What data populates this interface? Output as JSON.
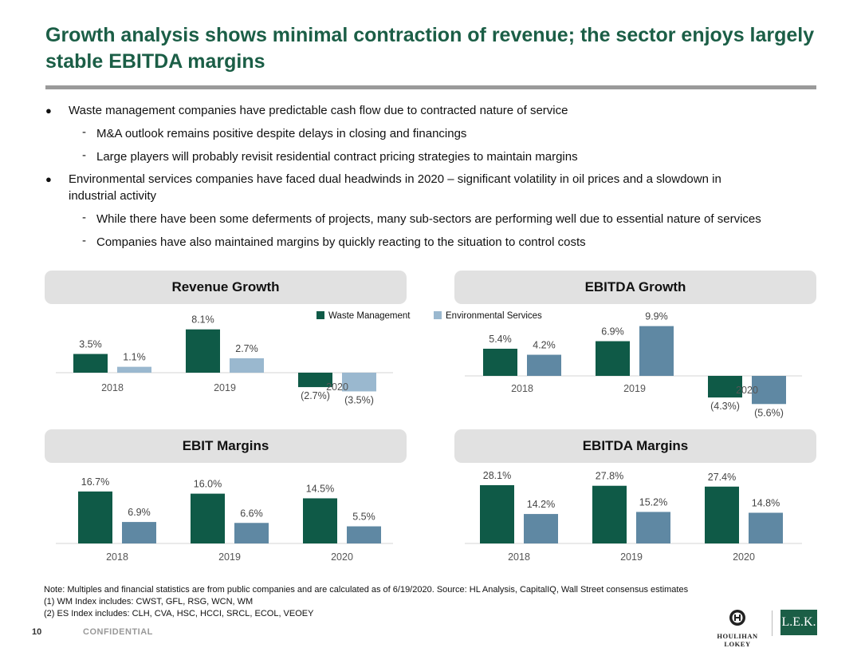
{
  "title": "Growth analysis shows minimal contraction of revenue; the sector enjoys largely stable EBITDA margins",
  "bullets": {
    "b1": "Waste management companies have predictable cash flow due to contracted nature of service",
    "b1_sub1": "M&A outlook remains positive despite delays in closing and financings",
    "b1_sub2": "Large players will probably revisit residential contract pricing strategies to maintain margins",
    "b2_line1": "Environmental services companies have faced dual headwinds in 2020 – significant volatility in oil prices and a slowdown in",
    "b2_line2": "industrial activity",
    "b2_sub1": "While there have been some deferments of projects, many sub-sectors are performing well due to essential nature of services",
    "b2_sub2": "Companies have also maintained margins by quickly reacting to the situation to control costs",
    "dash": "-"
  },
  "legend": {
    "wm": "Waste Management",
    "es": "Environmental Services"
  },
  "colors": {
    "wm": "#0f5a47",
    "es": "#5f88a3",
    "es_light": "#9ab8cf",
    "panel": "#e1e1e1",
    "title": "#1b5e46"
  },
  "chart_data": [
    {
      "type": "bar",
      "title": "Revenue Growth",
      "categories": [
        "2018",
        "2019",
        "2020"
      ],
      "series": [
        {
          "name": "Waste Management",
          "values": [
            3.5,
            8.1,
            -2.7
          ],
          "labels": [
            "3.5%",
            "8.1%",
            "(2.7%)"
          ]
        },
        {
          "name": "Environmental Services",
          "values": [
            1.1,
            2.7,
            -3.5
          ],
          "labels": [
            "1.1%",
            "2.7%",
            "(3.5%)"
          ]
        }
      ]
    },
    {
      "type": "bar",
      "title": "EBITDA Growth",
      "categories": [
        "2018",
        "2019",
        "2020"
      ],
      "series": [
        {
          "name": "Waste Management",
          "values": [
            5.4,
            6.9,
            -4.3
          ],
          "labels": [
            "5.4%",
            "6.9%",
            "(4.3%)"
          ]
        },
        {
          "name": "Environmental Services",
          "values": [
            4.2,
            9.9,
            -5.6
          ],
          "labels": [
            "4.2%",
            "9.9%",
            "(5.6%)"
          ]
        }
      ]
    },
    {
      "type": "bar",
      "title": "EBIT Margins",
      "categories": [
        "2018",
        "2019",
        "2020"
      ],
      "series": [
        {
          "name": "Waste Management",
          "values": [
            16.7,
            16.0,
            14.5
          ],
          "labels": [
            "16.7%",
            "16.0%",
            "14.5%"
          ]
        },
        {
          "name": "Environmental Services",
          "values": [
            6.9,
            6.6,
            5.5
          ],
          "labels": [
            "6.9%",
            "6.6%",
            "5.5%"
          ]
        }
      ]
    },
    {
      "type": "bar",
      "title": "EBITDA Margins",
      "categories": [
        "2018",
        "2019",
        "2020"
      ],
      "series": [
        {
          "name": "Waste Management",
          "values": [
            28.1,
            27.8,
            27.4
          ],
          "labels": [
            "28.1%",
            "27.8%",
            "27.4%"
          ]
        },
        {
          "name": "Environmental Services",
          "values": [
            14.2,
            15.2,
            14.8
          ],
          "labels": [
            "14.2%",
            "15.2%",
            "14.8%"
          ]
        }
      ]
    }
  ],
  "notes": {
    "n1": "Note: Multiples and financial statistics are from public companies and are calculated as of 6/19/2020. Source: HL Analysis, CapitalIQ, Wall Street consensus estimates",
    "n2": "(1) WM Index includes: CWST, GFL, RSG, WCN, WM",
    "n3": "(2) ES Index includes: CLH, CVA, HSC, HCCI, SRCL, ECOL, VEOEY"
  },
  "footer": {
    "page": "10",
    "confidential": "CONFIDENTIAL",
    "hl": "Houlihan Lokey",
    "lek": "L.E.K."
  }
}
